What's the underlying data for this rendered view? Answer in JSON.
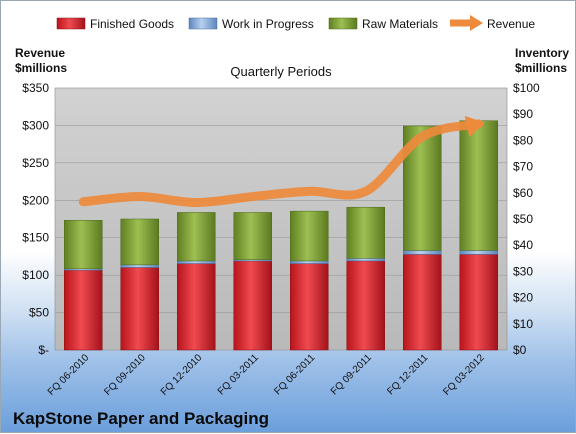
{
  "chart_data": {
    "type": "bar",
    "title": "Quarterly Periods",
    "company": "KapStone Paper and Packaging",
    "left_axis_title_line1": "Revenue",
    "left_axis_title_line2": "$millions",
    "right_axis_title_line1": "Inventory",
    "right_axis_title_line2": "$millions",
    "categories": [
      "FQ 06-2010",
      "FQ 09-2010",
      "FQ 12-2010",
      "FQ 03-2011",
      "FQ 06-2011",
      "FQ 09-2011",
      "FQ 12-2011",
      "FQ 03-2012"
    ],
    "series": [
      {
        "name": "Finished Goods",
        "axis": "right",
        "stacked": true,
        "color": "#e0333a",
        "values": [
          30.5,
          31.5,
          33,
          34,
          33,
          34,
          36.5,
          36.5
        ]
      },
      {
        "name": "Work in Progress",
        "axis": "right",
        "stacked": true,
        "color": "#8db3e2",
        "values": [
          0.5,
          1,
          1,
          0.5,
          1,
          1,
          1.5,
          1.5
        ]
      },
      {
        "name": "Raw Materials",
        "axis": "right",
        "stacked": true,
        "color": "#86a83a",
        "values": [
          18.5,
          17.5,
          18.5,
          18,
          19,
          19.5,
          47.5,
          49.5
        ]
      },
      {
        "name": "Revenue",
        "axis": "left",
        "type": "line",
        "color": "#ee8a3c",
        "values": [
          198,
          205,
          197,
          205,
          212,
          212,
          285,
          302
        ]
      }
    ],
    "ylim_left": [
      0,
      350
    ],
    "ylim_right": [
      0,
      100
    ],
    "left_ticks": [
      0,
      50,
      100,
      150,
      200,
      250,
      300,
      350
    ],
    "left_tick_labels": [
      "$-",
      "$50",
      "$100",
      "$150",
      "$200",
      "$250",
      "$300",
      "$350"
    ],
    "right_ticks": [
      0,
      10,
      20,
      30,
      40,
      50,
      60,
      70,
      80,
      90,
      100
    ],
    "right_tick_labels": [
      "$0",
      "$10",
      "$20",
      "$30",
      "$40",
      "$50",
      "$60",
      "$70",
      "$80",
      "$90",
      "$100"
    ],
    "legend_position": "top",
    "grid": true
  }
}
